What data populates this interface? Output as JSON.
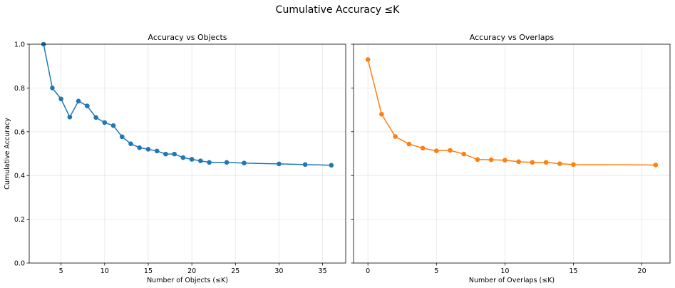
{
  "figure": {
    "suptitle": "Cumulative Accuracy ≤K"
  },
  "chart_data": [
    {
      "type": "line",
      "title": "Accuracy vs Objects",
      "xlabel": "Number of Objects (≤K)",
      "ylabel": "Cumulative Accuracy",
      "xlim": [
        1.35,
        37.65
      ],
      "ylim": [
        0,
        1.0
      ],
      "xticks": [
        5,
        10,
        15,
        20,
        25,
        30,
        35
      ],
      "yticks": [
        0.0,
        0.2,
        0.4,
        0.6,
        0.8,
        1.0
      ],
      "ytick_labels_visible": true,
      "grid": true,
      "color": "#1f77b4",
      "marker": "circle",
      "x": [
        3,
        4,
        5,
        6,
        7,
        8,
        9,
        10,
        11,
        12,
        13,
        14,
        15,
        16,
        17,
        18,
        19,
        20,
        21,
        22,
        24,
        26,
        30,
        33,
        36
      ],
      "y": [
        1.0,
        0.8,
        0.75,
        0.667,
        0.74,
        0.718,
        0.665,
        0.642,
        0.628,
        0.577,
        0.545,
        0.527,
        0.52,
        0.512,
        0.498,
        0.498,
        0.482,
        0.474,
        0.467,
        0.46,
        0.46,
        0.457,
        0.453,
        0.45,
        0.447
      ]
    },
    {
      "type": "line",
      "title": "Accuracy vs Overlaps",
      "xlabel": "Number of Overlaps (≤K)",
      "ylabel": "",
      "xlim": [
        -1.05,
        22.05
      ],
      "ylim": [
        0,
        1.0
      ],
      "xticks": [
        0,
        5,
        10,
        15,
        20
      ],
      "yticks": [
        0.0,
        0.2,
        0.4,
        0.6,
        0.8,
        1.0
      ],
      "ytick_labels_visible": false,
      "grid": true,
      "color": "#ff7f0e",
      "marker": "circle",
      "x": [
        0,
        1,
        2,
        3,
        4,
        5,
        6,
        7,
        8,
        9,
        10,
        11,
        12,
        13,
        14,
        15,
        21
      ],
      "y": [
        0.93,
        0.68,
        0.578,
        0.544,
        0.525,
        0.513,
        0.515,
        0.498,
        0.473,
        0.472,
        0.47,
        0.463,
        0.46,
        0.46,
        0.454,
        0.45,
        0.448
      ]
    }
  ]
}
